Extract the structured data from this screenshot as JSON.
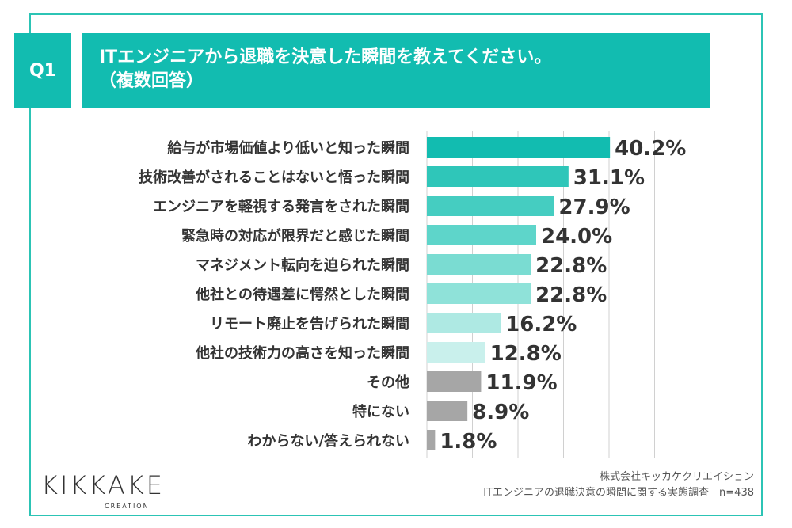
{
  "header": {
    "badge": "Q1",
    "title_line1": "ITエンジニアから退職を決意した瞬間を教えてください。",
    "title_line2": "（複数回答）"
  },
  "chart_data": {
    "type": "bar",
    "orientation": "horizontal",
    "categories": [
      "給与が市場価値より低いと知った瞬間",
      "技術改善がされることはないと悟った瞬間",
      "エンジニアを軽視する発言をされた瞬間",
      "緊急時の対応が限界だと感じた瞬間",
      "マネジメント転向を迫られた瞬間",
      "他社との待遇差に愕然とした瞬間",
      "リモート廃止を告げられた瞬間",
      "他社の技術力の高さを知った瞬間",
      "その他",
      "特にない",
      "わからない/答えられない"
    ],
    "values": [
      40.2,
      31.1,
      27.9,
      24.0,
      22.8,
      22.8,
      16.2,
      12.8,
      11.9,
      8.9,
      1.8
    ],
    "value_labels": [
      "40.2%",
      "31.1%",
      "27.9%",
      "24.0%",
      "22.8%",
      "22.8%",
      "16.2%",
      "12.8%",
      "11.9%",
      "8.9%",
      "1.8%"
    ],
    "bar_colors": [
      "#12bcb0",
      "#2fc6b9",
      "#45cdc1",
      "#5ed5ca",
      "#7adcd2",
      "#8fe2d9",
      "#aee9e3",
      "#c9f0ec",
      "#a6a6a6",
      "#a6a6a6",
      "#a6a6a6"
    ],
    "xlim": [
      0,
      50
    ],
    "grid": true,
    "title": "",
    "xlabel": "",
    "ylabel": ""
  },
  "footer": {
    "logo_main": "KIKKAKE",
    "logo_sub": "CREATION",
    "company": "株式会社キッカケクリエイション",
    "survey": "ITエンジニアの退職決意の瞬間に関する実態調査｜n=438"
  }
}
